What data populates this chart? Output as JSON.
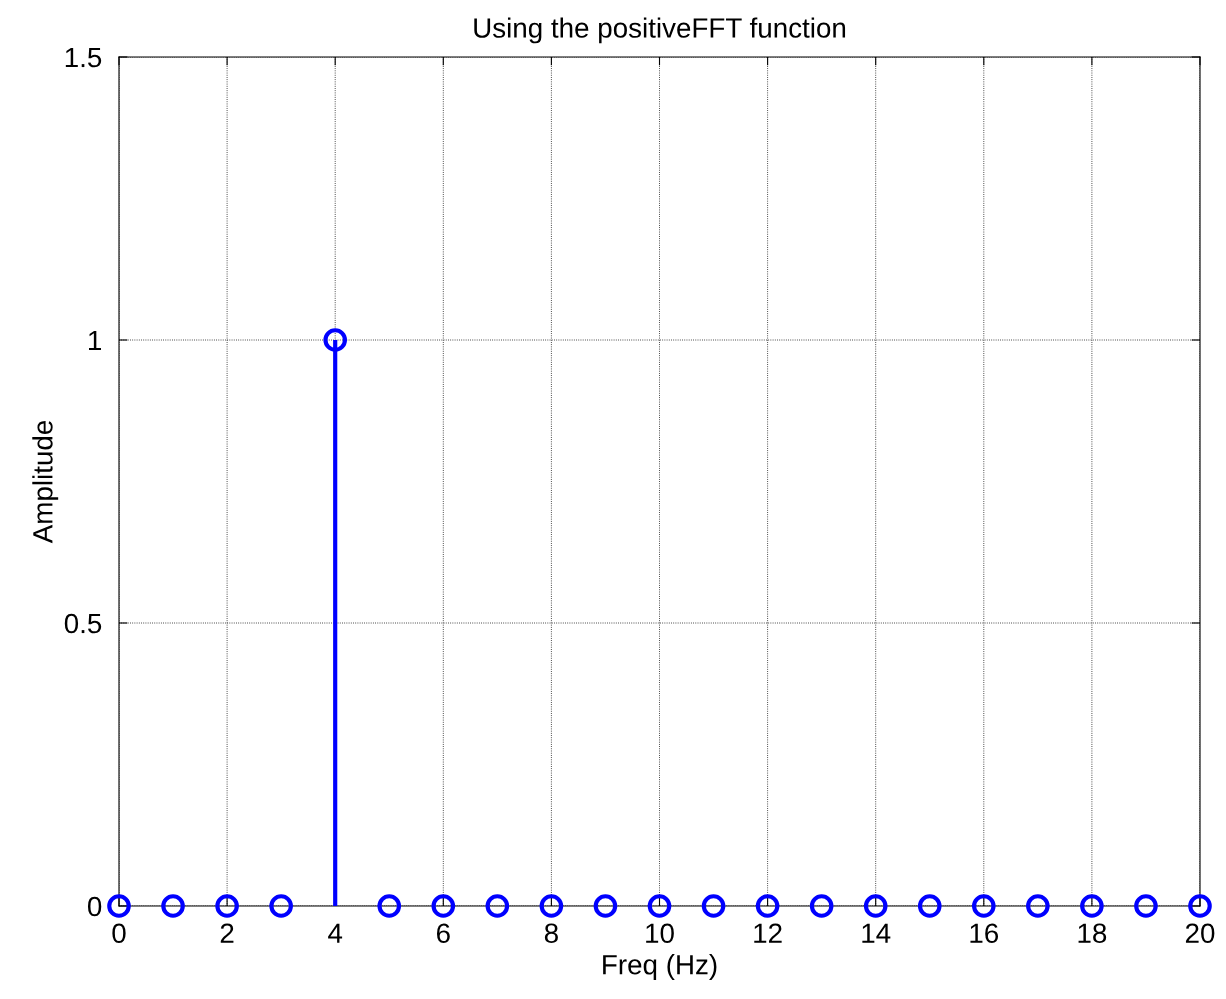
{
  "chart_data": {
    "type": "lollipop",
    "title": "Using the positiveFFT function",
    "xlabel": "Freq (Hz)",
    "ylabel": "Amplitude",
    "x": [
      0,
      1,
      2,
      3,
      4,
      5,
      6,
      7,
      8,
      9,
      10,
      11,
      12,
      13,
      14,
      15,
      16,
      17,
      18,
      19,
      20
    ],
    "series": [
      {
        "color": "#0000ff",
        "values": [
          0,
          0,
          0,
          0,
          1,
          0,
          0,
          0,
          0,
          0,
          0,
          0,
          0,
          0,
          0,
          0,
          0,
          0,
          0,
          0,
          0
        ]
      }
    ],
    "xlim": [
      0,
      20
    ],
    "ylim": [
      0,
      1.5
    ],
    "xticks": [
      0,
      2,
      4,
      6,
      8,
      10,
      12,
      14,
      16,
      18,
      20
    ],
    "yticks": [
      0,
      0.5,
      1,
      1.5
    ],
    "grid": true,
    "marker": "circle",
    "line_style": "solid"
  }
}
